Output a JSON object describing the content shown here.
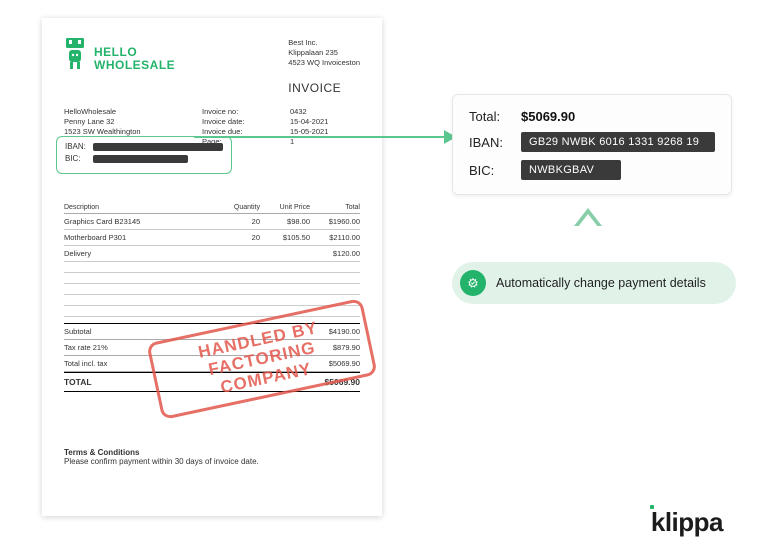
{
  "colors": {
    "brand_green": "#24b36b",
    "highlight_border": "#5bc78f",
    "pill_bg": "#e1f3e9",
    "stamp_red": "#e2574c",
    "redact": "#3a3a3a",
    "text": "#333333"
  },
  "invoice": {
    "logo_line1": "HELLO",
    "logo_line2": "WHOLESALE",
    "bill_to": {
      "name": "Best Inc.",
      "street": "Klippalaan 235",
      "city": "4523 WQ Invoiceston"
    },
    "title": "INVOICE",
    "seller": {
      "name": "HelloWholesale",
      "street": "Penny Lane 32",
      "city": "1523 SW Wealthington"
    },
    "meta_labels": {
      "no": "Invoice no:",
      "date": "Invoice date:",
      "due": "Invoice due:",
      "page": "Page:"
    },
    "meta_values": {
      "no": "0432",
      "date": "15-04-2021",
      "due": "15-05-2021",
      "page": "1"
    },
    "bank": {
      "iban_label": "IBAN:",
      "bic_label": "BIC:"
    },
    "columns": {
      "desc": "Description",
      "qty": "Quantity",
      "unit": "Unit Price",
      "total": "Total"
    },
    "rows": [
      {
        "desc": "Graphics Card B23145",
        "qty": "20",
        "unit": "$98.00",
        "total": "$1960.00"
      },
      {
        "desc": "Motherboard P301",
        "qty": "20",
        "unit": "$105.50",
        "total": "$2110.00"
      },
      {
        "desc": "Delivery",
        "qty": "",
        "unit": "",
        "total": "$120.00"
      }
    ],
    "totals": {
      "subtotal_label": "Subtotal",
      "subtotal": "$4190.00",
      "tax_label": "Tax rate 21%",
      "tax": "$879.90",
      "incl_label": "Total incl. tax",
      "incl": "$5069.90",
      "grand_label": "TOTAL",
      "grand": "$5069.90"
    },
    "stamp_line1": "HANDLED BY",
    "stamp_line2": "FACTORING COMPANY",
    "terms_heading": "Terms & Conditions",
    "terms_body": "Please confirm payment within 30 days of invoice date."
  },
  "detail": {
    "total_label": "Total:",
    "total_value": "$5069.90",
    "iban_label": "IBAN:",
    "iban_value": "GB29 NWBK 6016 1331 9268 19",
    "bic_label": "BIC:",
    "bic_value": "NWBKGBAV"
  },
  "pill_text": "Automatically change payment details",
  "footer_brand": "klippa"
}
